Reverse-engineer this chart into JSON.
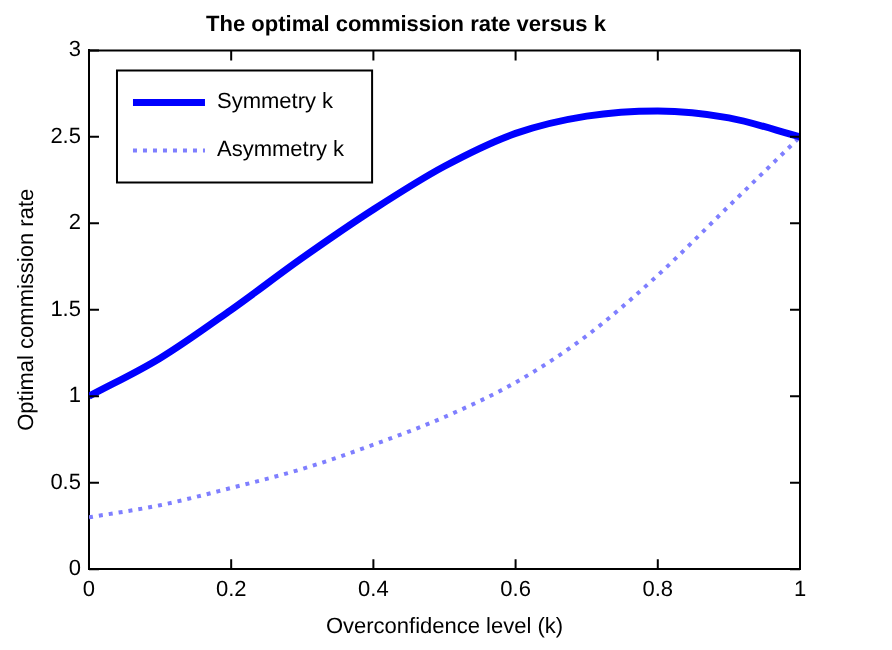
{
  "chart_data": {
    "type": "line",
    "title": "The optimal commission rate versus k",
    "xlabel": "Overconfidence level (k)",
    "ylabel": "Optimal commission rate",
    "x": [
      0,
      0.1,
      0.2,
      0.3,
      0.4,
      0.5,
      0.6,
      0.7,
      0.8,
      0.9,
      1
    ],
    "series": [
      {
        "name": "Symmetry k",
        "color": "#0000ff",
        "line_style": "solid",
        "values": [
          1.0,
          1.22,
          1.5,
          1.8,
          2.08,
          2.33,
          2.52,
          2.62,
          2.65,
          2.61,
          2.5
        ]
      },
      {
        "name": "Asymmetry k",
        "color": "#7f7fff",
        "line_style": "dotted",
        "values": [
          0.3,
          0.37,
          0.47,
          0.58,
          0.72,
          0.88,
          1.08,
          1.35,
          1.7,
          2.1,
          2.5
        ]
      }
    ],
    "xlim": [
      0,
      1
    ],
    "xticks": [
      0,
      0.2,
      0.4,
      0.6,
      0.8,
      1
    ],
    "ylim": [
      0,
      3
    ],
    "yticks": [
      0,
      0.5,
      1,
      1.5,
      2,
      2.5,
      3
    ],
    "grid": false,
    "legend": "top left",
    "marker": "none"
  }
}
